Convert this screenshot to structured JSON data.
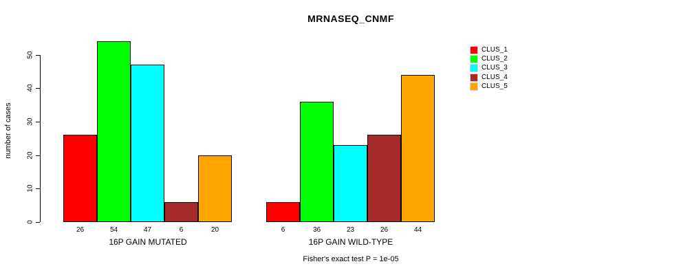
{
  "title": "MRNASEQ_CNMF",
  "ylabel": "number of cases",
  "footer": "Fisher's exact test P = 1e-05",
  "chart_data": {
    "type": "bar",
    "title": "MRNASEQ_CNMF",
    "xlabel": "",
    "ylabel": "number of cases",
    "ylim": [
      0,
      54
    ],
    "yticks": [
      0,
      10,
      20,
      30,
      40,
      50
    ],
    "grid": false,
    "legend_position": "right",
    "categories": [
      "16P GAIN MUTATED",
      "16P GAIN WILD-TYPE"
    ],
    "series": [
      {
        "name": "CLUS_1",
        "color": "#FF0000",
        "values": [
          26,
          6
        ]
      },
      {
        "name": "CLUS_2",
        "color": "#00FF00",
        "values": [
          54,
          36
        ]
      },
      {
        "name": "CLUS_3",
        "color": "#00FFFF",
        "values": [
          47,
          23
        ]
      },
      {
        "name": "CLUS_4",
        "color": "#A52A2A",
        "values": [
          6,
          26
        ]
      },
      {
        "name": "CLUS_5",
        "color": "#FFA500",
        "values": [
          20,
          44
        ]
      }
    ],
    "bar_value_labels": [
      [
        26,
        54,
        47,
        6,
        20
      ],
      [
        6,
        36,
        23,
        26,
        44
      ]
    ],
    "annotation": "Fisher's exact test P = 1e-05"
  },
  "legend": {
    "items": [
      {
        "label": "CLUS_1",
        "color": "#FF0000"
      },
      {
        "label": "CLUS_2",
        "color": "#00FF00"
      },
      {
        "label": "CLUS_3",
        "color": "#00FFFF"
      },
      {
        "label": "CLUS_4",
        "color": "#A52A2A"
      },
      {
        "label": "CLUS_5",
        "color": "#FFA500"
      }
    ]
  }
}
